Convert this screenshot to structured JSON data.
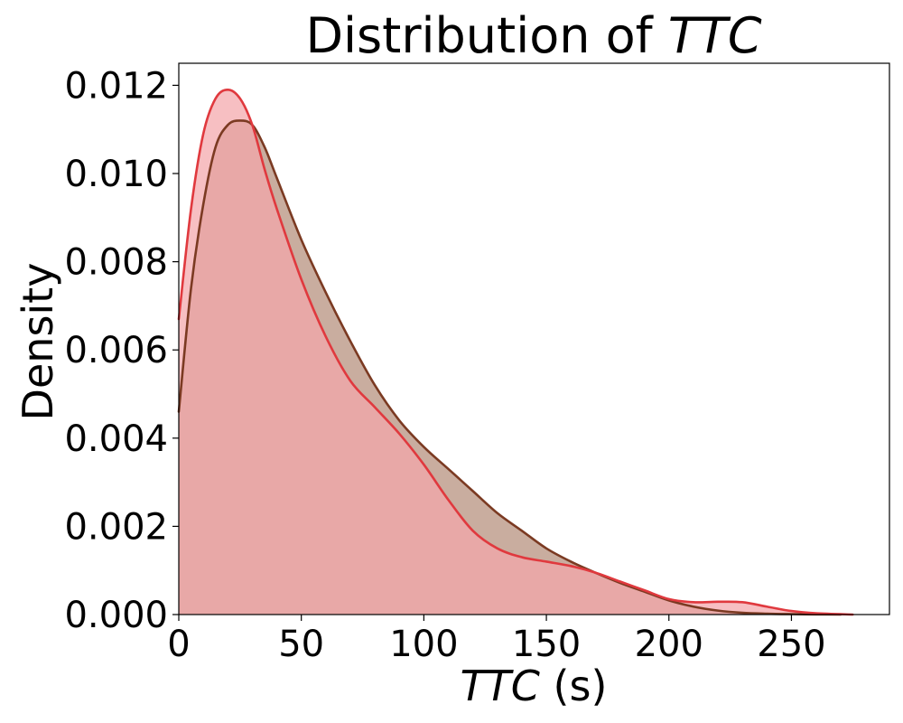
{
  "chart_data": {
    "type": "area",
    "title_prefix": "Distribution of ",
    "title_var": "TTC",
    "xlabel_var": "TTC",
    "xlabel_unit": " (s)",
    "ylabel": "Density",
    "xlim": [
      0,
      290
    ],
    "ylim": [
      0,
      0.0125
    ],
    "x_ticks": [
      0,
      50,
      100,
      150,
      200,
      250
    ],
    "x_tick_labels": [
      "0",
      "50",
      "100",
      "150",
      "200",
      "250"
    ],
    "y_ticks": [
      0,
      0.002,
      0.004,
      0.006,
      0.008,
      0.01,
      0.012
    ],
    "y_tick_labels": [
      "0.000",
      "0.002",
      "0.004",
      "0.006",
      "0.008",
      "0.010",
      "0.012"
    ],
    "grid": false,
    "series": [
      {
        "color": "#7b3a22",
        "fill": "#c9ad9f",
        "x": [
          0,
          5,
          10,
          15,
          20,
          25,
          30,
          35,
          40,
          50,
          60,
          70,
          80,
          90,
          100,
          110,
          120,
          130,
          140,
          150,
          160,
          170,
          180,
          190,
          200,
          210,
          220,
          230,
          240,
          250,
          260,
          270
        ],
        "y": [
          0.0046,
          0.0074,
          0.0093,
          0.0106,
          0.0111,
          0.0112,
          0.0111,
          0.0106,
          0.0099,
          0.0085,
          0.0073,
          0.0062,
          0.0052,
          0.0044,
          0.0038,
          0.0033,
          0.0028,
          0.0023,
          0.0019,
          0.0015,
          0.0012,
          0.00095,
          0.00072,
          0.00052,
          0.00032,
          0.00018,
          9e-05,
          4e-05,
          2e-05,
          1e-05,
          4e-06,
          0.0
        ]
      },
      {
        "color": "#e0393e",
        "fill": "#f4a6aa",
        "x": [
          0,
          5,
          10,
          15,
          20,
          25,
          30,
          35,
          40,
          50,
          60,
          70,
          80,
          90,
          100,
          110,
          120,
          130,
          140,
          150,
          160,
          170,
          180,
          190,
          200,
          210,
          220,
          230,
          240,
          250,
          260,
          275
        ],
        "y": [
          0.0067,
          0.0092,
          0.0109,
          0.0117,
          0.0119,
          0.0117,
          0.0111,
          0.0101,
          0.0092,
          0.0076,
          0.0063,
          0.0053,
          0.0047,
          0.0041,
          0.0034,
          0.0026,
          0.0019,
          0.0015,
          0.0013,
          0.0012,
          0.0011,
          0.00095,
          0.00075,
          0.00055,
          0.00035,
          0.00028,
          0.00029,
          0.00028,
          0.00018,
          8e-05,
          3e-05,
          0.0
        ]
      }
    ]
  }
}
